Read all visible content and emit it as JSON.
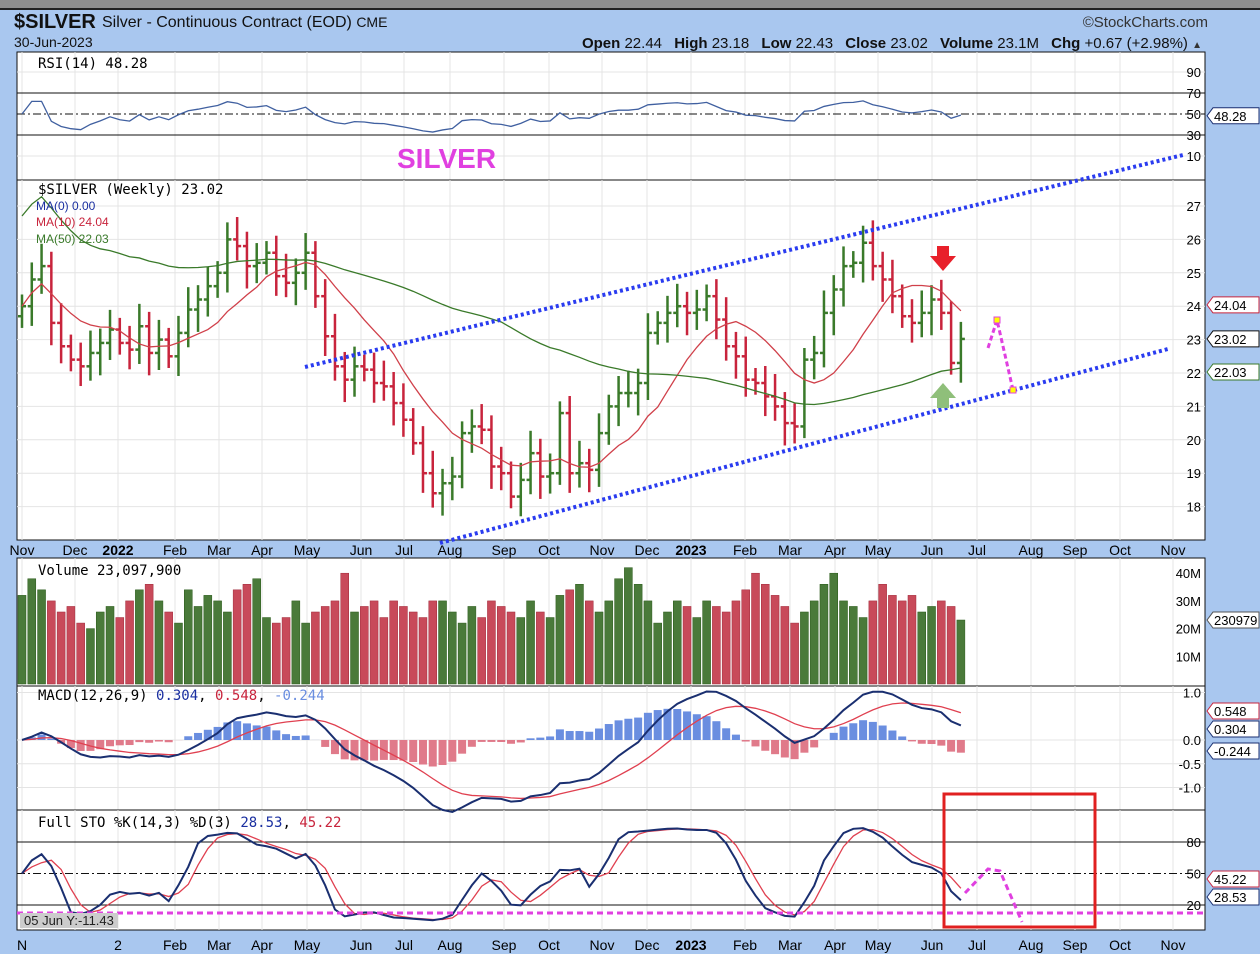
{
  "header": {
    "symbol": "$SILVER",
    "description": "Silver - Continuous Contract (EOD)",
    "exchange": "CME",
    "date": "30-Jun-2023",
    "brand": "©StockCharts.com",
    "open_label": "Open",
    "open": "22.44",
    "high_label": "High",
    "high": "23.18",
    "low_label": "Low",
    "low": "22.43",
    "close_label": "Close",
    "close": "23.02",
    "volume_label": "Volume",
    "volume": "23.1M",
    "chg_label": "Chg",
    "chg": "+0.67 (+2.98%)",
    "chg_arrow": "▲"
  },
  "annotation_text": "SILVER",
  "tooltip": "05 Jun Y:-11.43",
  "colors": {
    "up": "#3a7a2a",
    "down": "#c8243c",
    "ma10": "#d0404a",
    "ma50": "#3a7a2a",
    "channel": "#2a3cf0",
    "magenta": "#e040e0",
    "background": "#a9c7ef"
  },
  "chart_data": [
    {
      "type": "ohlc",
      "title": "$SILVER (Weekly) 23.02",
      "legend": [
        "MA(0) 0.00",
        "MA(10) 24.04",
        "MA(50) 22.03"
      ],
      "yticks": [
        18,
        19,
        20,
        21,
        22,
        23,
        24,
        25,
        26,
        27
      ],
      "ylim": [
        17.5,
        27.5
      ],
      "xticks": [
        "Nov",
        "Dec",
        "2022",
        "Feb",
        "Mar",
        "Apr",
        "May",
        "Jun",
        "Jul",
        "Aug",
        "Sep",
        "Oct",
        "Nov",
        "Dec",
        "2023",
        "Feb",
        "Mar",
        "Apr",
        "May",
        "Jun",
        "Jul",
        "Aug",
        "Sep",
        "Oct",
        "Nov"
      ],
      "xticks_bottom": [
        "N",
        "",
        "2",
        "Feb",
        "Mar",
        "Apr",
        "May",
        "Jun",
        "Jul",
        "Aug",
        "Sep",
        "Oct",
        "Nov",
        "Dec",
        "2023",
        "Feb",
        "Mar",
        "Apr",
        "May",
        "Jun",
        "Jul",
        "Aug",
        "Sep",
        "Oct",
        "Nov"
      ],
      "closes": [
        24.0,
        24.8,
        25.2,
        23.5,
        22.8,
        22.4,
        22.2,
        22.6,
        22.9,
        23.3,
        22.9,
        22.7,
        23.4,
        22.6,
        23.0,
        22.5,
        23.2,
        23.9,
        24.2,
        24.6,
        25.0,
        26.0,
        25.8,
        25.2,
        25.3,
        25.6,
        24.9,
        24.7,
        25.0,
        25.6,
        24.3,
        23.1,
        22.2,
        21.8,
        22.2,
        22.1,
        21.7,
        21.6,
        21.1,
        20.6,
        19.9,
        19.0,
        18.4,
        18.7,
        18.9,
        20.2,
        20.4,
        20.3,
        19.2,
        19.0,
        18.3,
        18.8,
        19.6,
        18.9,
        19.0,
        20.8,
        19.0,
        19.3,
        19.1,
        20.2,
        21.0,
        21.4,
        21.4,
        21.7,
        23.2,
        23.5,
        23.8,
        24.0,
        23.8,
        23.9,
        24.3,
        23.6,
        22.8,
        22.5,
        21.8,
        21.7,
        21.3,
        21.0,
        20.5,
        20.4,
        22.4,
        22.6,
        23.8,
        24.5,
        25.2,
        25.3,
        25.9,
        25.2,
        24.8,
        24.3,
        23.7,
        23.5,
        23.8,
        24.2,
        23.8,
        22.3,
        23.02
      ],
      "tags": {
        "ma10": "24.04",
        "close": "23.02",
        "ma50": "22.03"
      }
    },
    {
      "type": "line",
      "title": "RSI(14) 48.28",
      "yticks": [
        90,
        70,
        50,
        30,
        10
      ],
      "ylim": [
        0,
        100
      ],
      "tag": "48.28"
    },
    {
      "type": "bar",
      "title": "Volume 23,097,900",
      "yticks": [
        "10M",
        "20M",
        "30M",
        "40M"
      ],
      "ylim": [
        0,
        45
      ],
      "tag": "230979",
      "values_millions": [
        32,
        38,
        34,
        30,
        26,
        28,
        22,
        20,
        26,
        28,
        24,
        30,
        34,
        36,
        30,
        26,
        22,
        34,
        28,
        32,
        30,
        26,
        34,
        36,
        38,
        24,
        22,
        24,
        30,
        22,
        26,
        28,
        30,
        40,
        26,
        28,
        30,
        24,
        30,
        28,
        26,
        24,
        30,
        30,
        26,
        22,
        28,
        24,
        30,
        28,
        26,
        24,
        30,
        26,
        24,
        32,
        34,
        36,
        30,
        26,
        30,
        38,
        42,
        36,
        30,
        22,
        26,
        30,
        28,
        24,
        30,
        28,
        26,
        30,
        34,
        40,
        36,
        32,
        28,
        22,
        26,
        30,
        36,
        40,
        30,
        28,
        24,
        30,
        36,
        32,
        30,
        32,
        26,
        28,
        30,
        28,
        23.1
      ]
    },
    {
      "type": "line",
      "title_name": "MACD(12,26,9)",
      "v1": "0.304",
      "v2": "0.548",
      "v3": "-0.244",
      "yticks": [
        "1.0",
        "0.0",
        "-0.5",
        "-1.0"
      ],
      "ylim": [
        -1.2,
        1.2
      ],
      "tags": [
        "0.548",
        "0.304",
        "-0.244"
      ]
    },
    {
      "type": "line",
      "title_name": "Full STO %K(14,3) %D(3)",
      "v1": "28.53",
      "v2": "45.22",
      "yticks": [
        "80",
        "50",
        "20"
      ],
      "ylim": [
        0,
        100
      ],
      "tags": [
        "45.22",
        "28.53"
      ]
    }
  ]
}
